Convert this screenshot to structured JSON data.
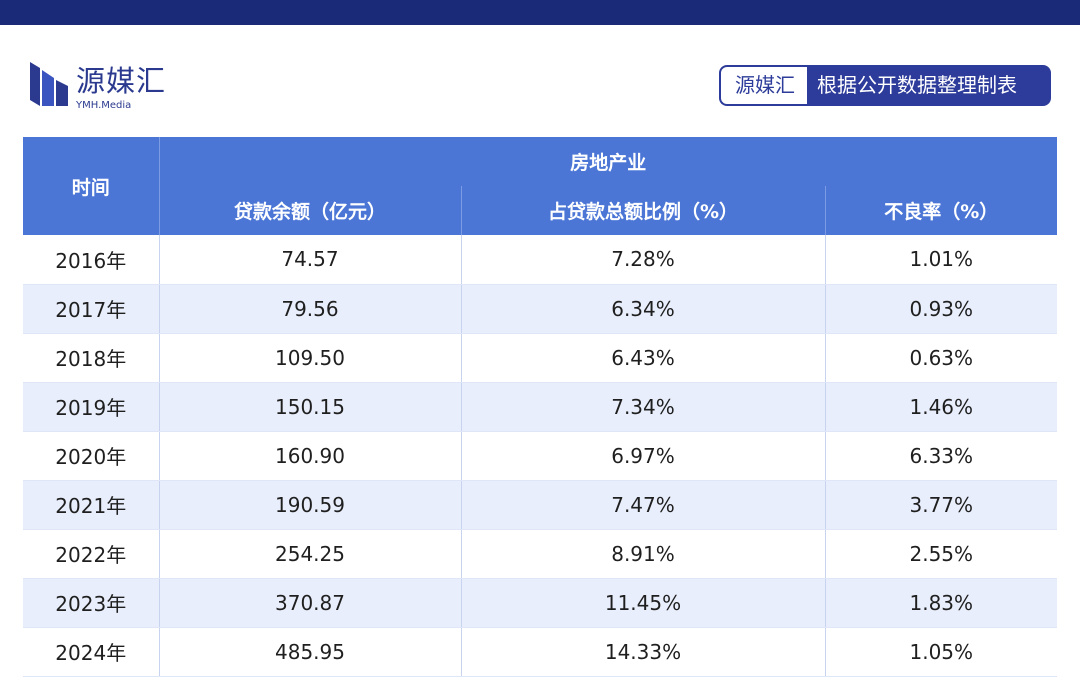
{
  "header": {
    "logo_text": "源媒汇",
    "logo_sub": "YMH.Media",
    "source_brand": "源媒汇",
    "source_note": "根据公开数据整理制表"
  },
  "table": {
    "row_header": "时间",
    "group_header": "房地产业",
    "columns": [
      "贷款余额（亿元）",
      "占贷款总额比例（%）",
      "不良率（%）"
    ],
    "rows": [
      [
        "2016年",
        "74.57",
        "7.28%",
        "1.01%"
      ],
      [
        "2017年",
        "79.56",
        "6.34%",
        "0.93%"
      ],
      [
        "2018年",
        "109.50",
        "6.43%",
        "0.63%"
      ],
      [
        "2019年",
        "150.15",
        "7.34%",
        "1.46%"
      ],
      [
        "2020年",
        "160.90",
        "6.97%",
        "6.33%"
      ],
      [
        "2021年",
        "190.59",
        "7.47%",
        "3.77%"
      ],
      [
        "2022年",
        "254.25",
        "8.91%",
        "2.55%"
      ],
      [
        "2023年",
        "370.87",
        "11.45%",
        "1.83%"
      ],
      [
        "2024年",
        "485.95",
        "14.33%",
        "1.05%"
      ]
    ]
  },
  "colors": {
    "topbar": "#1a2a78",
    "header_blue": "#4b76d6",
    "brand_navy": "#2d3c9a",
    "stripe": "#e8eefb"
  }
}
